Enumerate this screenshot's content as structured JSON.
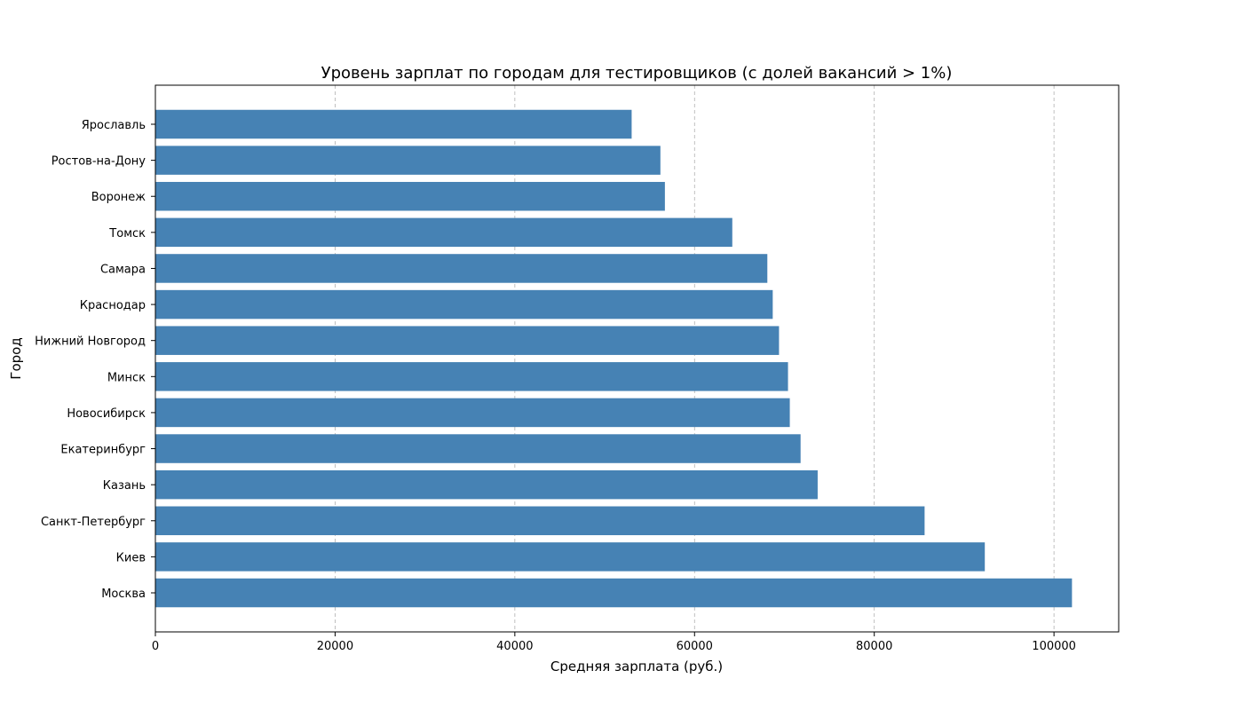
{
  "chart_data": {
    "type": "bar",
    "orientation": "horizontal",
    "title": "Уровень зарплат по городам для тестировщиков (с долей вакансий > 1%)",
    "xlabel": "Средняя зарплата (руб.)",
    "ylabel": "Город",
    "xlim": [
      0,
      107200
    ],
    "xticks": [
      0,
      20000,
      40000,
      60000,
      80000,
      100000
    ],
    "grid": "x-dashed",
    "bar_color": "#4682b4",
    "categories": [
      "Москва",
      "Киев",
      "Санкт-Петербург",
      "Казань",
      "Екатеринбург",
      "Новосибирск",
      "Минск",
      "Нижний Новгород",
      "Краснодар",
      "Самара",
      "Томск",
      "Воронеж",
      "Ростов-на-Дону",
      "Ярославль"
    ],
    "values": [
      102000,
      92300,
      85600,
      73700,
      71800,
      70600,
      70400,
      69400,
      68700,
      68100,
      64200,
      56700,
      56200,
      53000
    ]
  }
}
